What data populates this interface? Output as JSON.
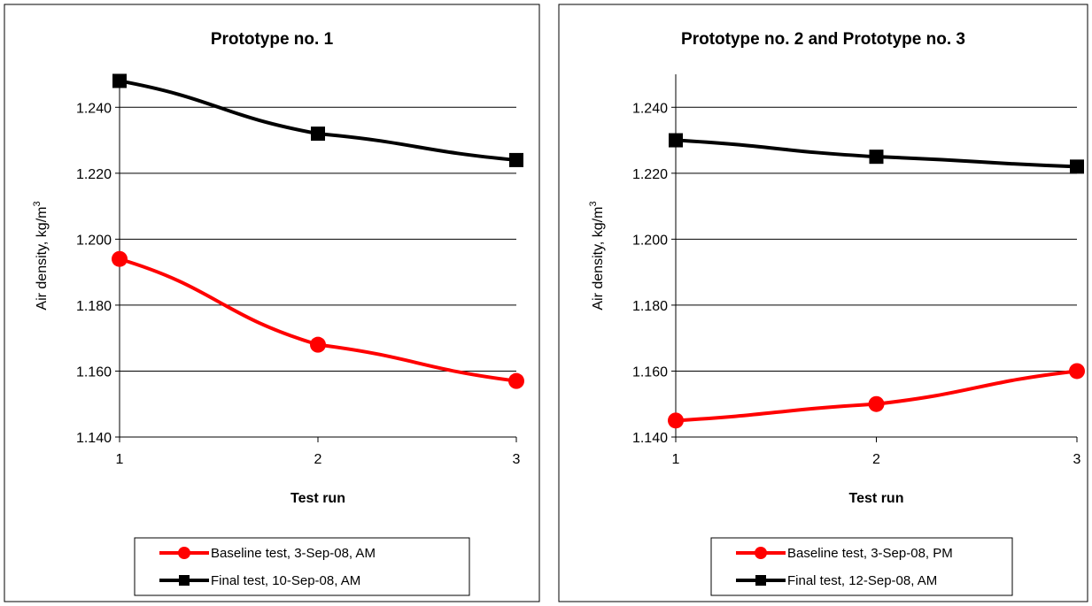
{
  "chart_data": [
    {
      "type": "line",
      "title": "Prototype no. 1",
      "xlabel": "Test run",
      "ylabel": "Air density, kg/m",
      "ylabel_sup": "3",
      "x": [
        1,
        2,
        3
      ],
      "x_ticks": [
        "1",
        "2",
        "3"
      ],
      "ylim": [
        1.14,
        1.25
      ],
      "y_ticks": [
        "1.140",
        "1.160",
        "1.180",
        "1.200",
        "1.220",
        "1.240"
      ],
      "grid": "horizontal",
      "legend_position": "bottom",
      "series": [
        {
          "name": "Baseline test, 3-Sep-08, AM",
          "values": [
            1.194,
            1.168,
            1.157
          ],
          "color": "#ff0000",
          "marker": "circle"
        },
        {
          "name": "Final test, 10-Sep-08, AM",
          "values": [
            1.248,
            1.232,
            1.224
          ],
          "color": "#000000",
          "marker": "square"
        }
      ]
    },
    {
      "type": "line",
      "title": "Prototype no. 2 and Prototype no. 3",
      "xlabel": "Test run",
      "ylabel": "Air density, kg/m",
      "ylabel_sup": "3",
      "x": [
        1,
        2,
        3
      ],
      "x_ticks": [
        "1",
        "2",
        "3"
      ],
      "ylim": [
        1.14,
        1.25
      ],
      "y_ticks": [
        "1.140",
        "1.160",
        "1.180",
        "1.200",
        "1.220",
        "1.240"
      ],
      "grid": "horizontal",
      "legend_position": "bottom",
      "series": [
        {
          "name": "Baseline test, 3-Sep-08, PM",
          "values": [
            1.145,
            1.15,
            1.16
          ],
          "color": "#ff0000",
          "marker": "circle"
        },
        {
          "name": "Final test, 12-Sep-08, AM",
          "values": [
            1.23,
            1.225,
            1.222
          ],
          "color": "#000000",
          "marker": "square"
        }
      ]
    }
  ]
}
